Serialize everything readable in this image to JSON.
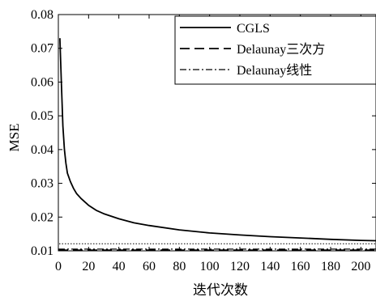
{
  "chart_data": {
    "type": "line",
    "xlabel": "迭代次数",
    "ylabel": "MSE",
    "xlim": [
      0,
      210
    ],
    "ylim": [
      0.01,
      0.08
    ],
    "x_ticks": [
      0,
      20,
      40,
      60,
      80,
      100,
      120,
      140,
      160,
      180,
      200
    ],
    "y_ticks": [
      0.01,
      0.02,
      0.03,
      0.04,
      0.05,
      0.06,
      0.07,
      0.08
    ],
    "y_tick_labels": [
      "0.01",
      "0.02",
      "0.03",
      "0.04",
      "0.05",
      "0.06",
      "0.07",
      "0.08"
    ],
    "grid": false,
    "legend_position": "top-right",
    "series": [
      {
        "name": "CGLS",
        "style": "solid",
        "x": [
          1,
          2,
          3,
          4,
          5,
          6,
          8,
          10,
          12,
          15,
          20,
          25,
          30,
          40,
          50,
          60,
          80,
          100,
          120,
          140,
          160,
          180,
          200,
          210
        ],
        "y": [
          0.073,
          0.06,
          0.047,
          0.04,
          0.036,
          0.033,
          0.0305,
          0.0285,
          0.027,
          0.0255,
          0.0235,
          0.022,
          0.021,
          0.0195,
          0.0183,
          0.0175,
          0.0162,
          0.0153,
          0.0147,
          0.0142,
          0.0138,
          0.0134,
          0.0131,
          0.013
        ]
      },
      {
        "name": "Delaunay三次方",
        "style": "dashed",
        "x": [
          0,
          210
        ],
        "y": [
          0.0102,
          0.0102
        ]
      },
      {
        "name": "Delaunay线性",
        "style": "dashdot",
        "x": [
          0,
          210
        ],
        "y": [
          0.0105,
          0.0105
        ]
      }
    ],
    "reference_lines": [
      {
        "style": "dotted",
        "y": 0.0121
      }
    ]
  }
}
